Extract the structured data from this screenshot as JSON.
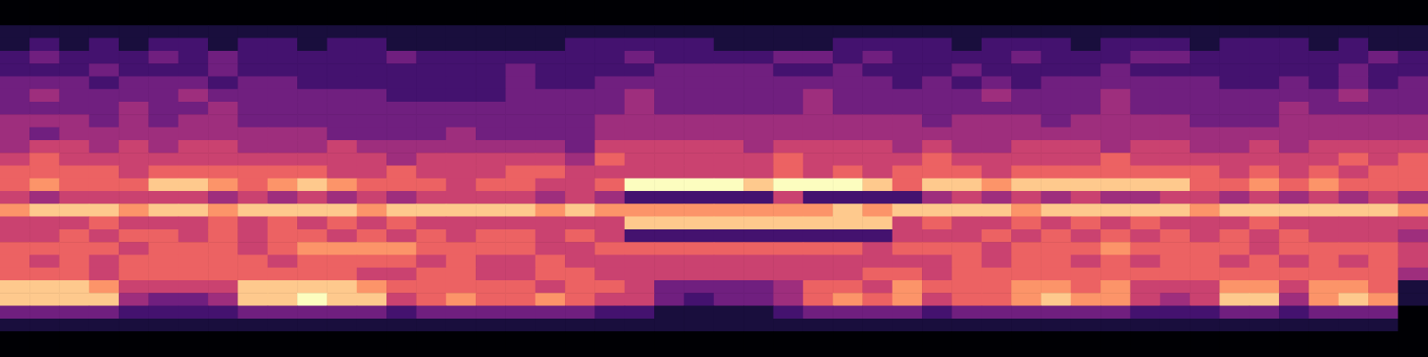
{
  "chart_data": {
    "type": "heatmap",
    "tick_labels": false,
    "grid": false,
    "color_range": [
      0,
      9
    ],
    "cells": [
      [
        0,
        0,
        0,
        0,
        0,
        0,
        0,
        0,
        0,
        0,
        0,
        0,
        0,
        0,
        0,
        0,
        0,
        0,
        0,
        0,
        0,
        0,
        0,
        0,
        0,
        0,
        0,
        0,
        0,
        0,
        0,
        0,
        0,
        0,
        0,
        0,
        0,
        0,
        0,
        0,
        0,
        0,
        0,
        0,
        0,
        0,
        0,
        0
      ],
      [
        0,
        0,
        0,
        0,
        0,
        0,
        0,
        0,
        0,
        0,
        0,
        0,
        0,
        0,
        0,
        0,
        0,
        0,
        0,
        0,
        0,
        0,
        0,
        0,
        0,
        0,
        0,
        0,
        0,
        0,
        0,
        0,
        0,
        0,
        0,
        0,
        0,
        0,
        0,
        0,
        0,
        0,
        0,
        0,
        0,
        0,
        0,
        0
      ],
      [
        1,
        1,
        1,
        1,
        1,
        1,
        1,
        1,
        1,
        1,
        1,
        1,
        1,
        1,
        1,
        1,
        1,
        1,
        1,
        1,
        1,
        1,
        1,
        1,
        1,
        1,
        1,
        1,
        1,
        1,
        1,
        1,
        1,
        1,
        1,
        1,
        1,
        1,
        1,
        1,
        1,
        1,
        1,
        1,
        1,
        1,
        1,
        1
      ],
      [
        1,
        2,
        1,
        2,
        1,
        2,
        2,
        1,
        2,
        2,
        1,
        2,
        2,
        1,
        1,
        1,
        1,
        1,
        1,
        2,
        2,
        2,
        2,
        2,
        1,
        1,
        1,
        1,
        2,
        2,
        2,
        2,
        1,
        2,
        2,
        2,
        1,
        2,
        2,
        2,
        1,
        2,
        2,
        2,
        1,
        2,
        1,
        1
      ],
      [
        2,
        3,
        2,
        2,
        2,
        3,
        2,
        3,
        2,
        2,
        2,
        2,
        2,
        3,
        2,
        2,
        2,
        2,
        2,
        2,
        2,
        3,
        2,
        2,
        2,
        2,
        3,
        3,
        2,
        3,
        2,
        2,
        2,
        2,
        3,
        2,
        2,
        2,
        3,
        3,
        2,
        2,
        2,
        2,
        2,
        2,
        3,
        2
      ],
      [
        2,
        2,
        2,
        3,
        2,
        2,
        2,
        3,
        2,
        2,
        2,
        2,
        2,
        2,
        2,
        2,
        2,
        3,
        2,
        2,
        2,
        2,
        3,
        3,
        3,
        3,
        2,
        2,
        3,
        2,
        2,
        2,
        3,
        2,
        2,
        2,
        2,
        3,
        2,
        2,
        2,
        2,
        2,
        2,
        2,
        3,
        2,
        2
      ],
      [
        3,
        3,
        3,
        2,
        3,
        3,
        3,
        2,
        3,
        3,
        2,
        2,
        2,
        2,
        2,
        2,
        2,
        3,
        2,
        2,
        3,
        3,
        3,
        3,
        3,
        3,
        3,
        3,
        3,
        3,
        2,
        3,
        2,
        3,
        2,
        3,
        3,
        3,
        3,
        3,
        3,
        2,
        2,
        3,
        2,
        3,
        2,
        3
      ],
      [
        3,
        4,
        3,
        3,
        3,
        3,
        4,
        3,
        3,
        3,
        3,
        3,
        3,
        2,
        2,
        2,
        2,
        3,
        3,
        3,
        3,
        4,
        3,
        3,
        3,
        3,
        3,
        4,
        3,
        3,
        3,
        3,
        3,
        4,
        3,
        3,
        3,
        4,
        3,
        3,
        3,
        3,
        3,
        3,
        3,
        4,
        3,
        3
      ],
      [
        3,
        3,
        3,
        3,
        4,
        3,
        3,
        4,
        3,
        3,
        3,
        3,
        3,
        3,
        3,
        3,
        3,
        3,
        3,
        3,
        3,
        4,
        3,
        3,
        3,
        3,
        3,
        4,
        3,
        3,
        3,
        3,
        3,
        3,
        3,
        3,
        3,
        4,
        3,
        3,
        3,
        3,
        3,
        4,
        3,
        3,
        3,
        3
      ],
      [
        4,
        4,
        4,
        3,
        4,
        3,
        4,
        4,
        3,
        3,
        3,
        3,
        3,
        3,
        3,
        3,
        3,
        3,
        3,
        3,
        4,
        4,
        4,
        4,
        4,
        4,
        4,
        4,
        4,
        4,
        4,
        3,
        4,
        4,
        4,
        3,
        4,
        4,
        4,
        4,
        3,
        3,
        3,
        4,
        4,
        4,
        4,
        4
      ],
      [
        4,
        3,
        4,
        4,
        4,
        4,
        4,
        4,
        4,
        4,
        4,
        3,
        3,
        3,
        3,
        4,
        3,
        3,
        3,
        3,
        4,
        4,
        4,
        4,
        4,
        4,
        4,
        4,
        4,
        4,
        4,
        4,
        4,
        4,
        4,
        4,
        4,
        4,
        4,
        4,
        4,
        4,
        4,
        4,
        4,
        4,
        4,
        4
      ],
      [
        4,
        5,
        5,
        4,
        5,
        4,
        5,
        5,
        4,
        4,
        4,
        5,
        4,
        4,
        4,
        4,
        4,
        4,
        4,
        3,
        5,
        5,
        5,
        5,
        5,
        4,
        5,
        5,
        5,
        5,
        4,
        5,
        4,
        4,
        5,
        5,
        5,
        4,
        5,
        5,
        4,
        4,
        5,
        4,
        5,
        5,
        5,
        5
      ],
      [
        5,
        6,
        5,
        5,
        5,
        5,
        5,
        5,
        5,
        5,
        5,
        5,
        5,
        4,
        5,
        5,
        5,
        5,
        5,
        4,
        6,
        5,
        5,
        5,
        5,
        5,
        6,
        5,
        5,
        5,
        5,
        6,
        5,
        5,
        5,
        5,
        5,
        6,
        5,
        5,
        5,
        5,
        5,
        5,
        5,
        6,
        5,
        6
      ],
      [
        6,
        6,
        6,
        6,
        5,
        6,
        6,
        6,
        6,
        6,
        6,
        5,
        5,
        6,
        5,
        5,
        5,
        6,
        6,
        5,
        5,
        5,
        5,
        5,
        5,
        5,
        6,
        5,
        6,
        5,
        6,
        6,
        6,
        5,
        6,
        6,
        6,
        6,
        6,
        6,
        6,
        5,
        6,
        5,
        6,
        5,
        6,
        6
      ],
      [
        6,
        7,
        6,
        6,
        6,
        8,
        8,
        7,
        6,
        7,
        8,
        7,
        6,
        6,
        6,
        5,
        6,
        6,
        5,
        5,
        6,
        9,
        9,
        9,
        9,
        8,
        9,
        9,
        9,
        8,
        6,
        8,
        8,
        7,
        8,
        8,
        8,
        8,
        8,
        8,
        6,
        6,
        7,
        6,
        7,
        6,
        6,
        6
      ],
      [
        5,
        4,
        5,
        5,
        5,
        5,
        5,
        4,
        5,
        4,
        5,
        4,
        5,
        4,
        5,
        5,
        5,
        5,
        4,
        5,
        4,
        2,
        2,
        2,
        2,
        2,
        5,
        2,
        2,
        2,
        2,
        4,
        5,
        4,
        5,
        4,
        5,
        4,
        4,
        5,
        5,
        4,
        5,
        4,
        5,
        4,
        5,
        4
      ],
      [
        7,
        8,
        8,
        8,
        7,
        8,
        8,
        7,
        8,
        8,
        8,
        8,
        7,
        8,
        8,
        8,
        8,
        8,
        7,
        8,
        7,
        7,
        7,
        7,
        7,
        7,
        7,
        7,
        8,
        7,
        8,
        8,
        8,
        8,
        7,
        8,
        8,
        8,
        8,
        8,
        7,
        8,
        8,
        8,
        8,
        8,
        8,
        7
      ],
      [
        5,
        5,
        5,
        6,
        5,
        5,
        5,
        6,
        5,
        6,
        5,
        6,
        5,
        6,
        5,
        5,
        5,
        5,
        5,
        5,
        5,
        8,
        8,
        8,
        8,
        8,
        8,
        8,
        8,
        8,
        5,
        6,
        5,
        5,
        6,
        5,
        6,
        5,
        6,
        5,
        5,
        5,
        6,
        5,
        5,
        5,
        5,
        5
      ],
      [
        5,
        5,
        6,
        5,
        6,
        6,
        5,
        6,
        5,
        6,
        6,
        5,
        6,
        5,
        6,
        5,
        6,
        6,
        5,
        6,
        5,
        2,
        2,
        2,
        2,
        2,
        2,
        2,
        2,
        2,
        5,
        5,
        5,
        6,
        5,
        6,
        5,
        6,
        5,
        6,
        5,
        6,
        5,
        6,
        5,
        5,
        5,
        4
      ],
      [
        6,
        6,
        6,
        6,
        5,
        6,
        6,
        6,
        5,
        6,
        7,
        7,
        7,
        7,
        6,
        6,
        6,
        6,
        5,
        5,
        6,
        6,
        6,
        6,
        6,
        6,
        6,
        6,
        6,
        5,
        6,
        6,
        6,
        5,
        6,
        6,
        6,
        7,
        6,
        6,
        6,
        6,
        5,
        6,
        6,
        6,
        6,
        5
      ],
      [
        6,
        5,
        6,
        5,
        6,
        6,
        6,
        6,
        6,
        5,
        6,
        6,
        6,
        6,
        5,
        6,
        5,
        5,
        6,
        5,
        5,
        5,
        5,
        5,
        5,
        5,
        5,
        5,
        5,
        5,
        5,
        5,
        6,
        5,
        6,
        6,
        5,
        6,
        5,
        6,
        6,
        5,
        6,
        5,
        6,
        5,
        6,
        5
      ],
      [
        6,
        6,
        6,
        5,
        6,
        6,
        6,
        6,
        6,
        6,
        6,
        6,
        5,
        5,
        6,
        6,
        5,
        5,
        6,
        6,
        5,
        5,
        5,
        5,
        5,
        5,
        5,
        5,
        5,
        6,
        6,
        5,
        6,
        6,
        6,
        6,
        6,
        6,
        6,
        6,
        6,
        6,
        6,
        6,
        6,
        6,
        6,
        4
      ],
      [
        8,
        8,
        8,
        7,
        5,
        5,
        5,
        5,
        8,
        8,
        8,
        8,
        7,
        6,
        6,
        6,
        6,
        6,
        5,
        6,
        6,
        5,
        3,
        3,
        3,
        3,
        4,
        6,
        6,
        5,
        7,
        6,
        6,
        6,
        7,
        7,
        6,
        7,
        5,
        5,
        5,
        7,
        7,
        5,
        7,
        7,
        6,
        1
      ],
      [
        8,
        8,
        8,
        8,
        4,
        3,
        3,
        4,
        8,
        8,
        9,
        8,
        8,
        5,
        6,
        7,
        6,
        6,
        7,
        6,
        5,
        5,
        3,
        2,
        3,
        3,
        4,
        6,
        7,
        6,
        7,
        5,
        6,
        6,
        7,
        8,
        7,
        7,
        5,
        4,
        5,
        8,
        8,
        4,
        7,
        8,
        7,
        1
      ],
      [
        3,
        3,
        3,
        3,
        2,
        2,
        2,
        2,
        3,
        3,
        3,
        3,
        3,
        2,
        3,
        3,
        3,
        3,
        3,
        3,
        2,
        2,
        1,
        1,
        1,
        1,
        2,
        3,
        3,
        3,
        3,
        2,
        3,
        3,
        3,
        3,
        3,
        3,
        2,
        2,
        2,
        3,
        3,
        2,
        3,
        3,
        3,
        0
      ],
      [
        1,
        1,
        1,
        1,
        1,
        1,
        1,
        1,
        1,
        1,
        1,
        1,
        1,
        1,
        1,
        1,
        1,
        1,
        1,
        1,
        1,
        1,
        1,
        1,
        1,
        1,
        1,
        1,
        1,
        1,
        1,
        1,
        1,
        1,
        1,
        1,
        1,
        1,
        1,
        1,
        1,
        1,
        1,
        1,
        1,
        1,
        1,
        0
      ],
      [
        0,
        0,
        0,
        0,
        0,
        0,
        0,
        0,
        0,
        0,
        0,
        0,
        0,
        0,
        0,
        0,
        0,
        0,
        0,
        0,
        0,
        0,
        0,
        0,
        0,
        0,
        0,
        0,
        0,
        0,
        0,
        0,
        0,
        0,
        0,
        0,
        0,
        0,
        0,
        0,
        0,
        0,
        0,
        0,
        0,
        0,
        0,
        0
      ],
      [
        0,
        0,
        0,
        0,
        0,
        0,
        0,
        0,
        0,
        0,
        0,
        0,
        0,
        0,
        0,
        0,
        0,
        0,
        0,
        0,
        0,
        0,
        0,
        0,
        0,
        0,
        0,
        0,
        0,
        0,
        0,
        0,
        0,
        0,
        0,
        0,
        0,
        0,
        0,
        0,
        0,
        0,
        0,
        0,
        0,
        0,
        0,
        0
      ]
    ]
  }
}
